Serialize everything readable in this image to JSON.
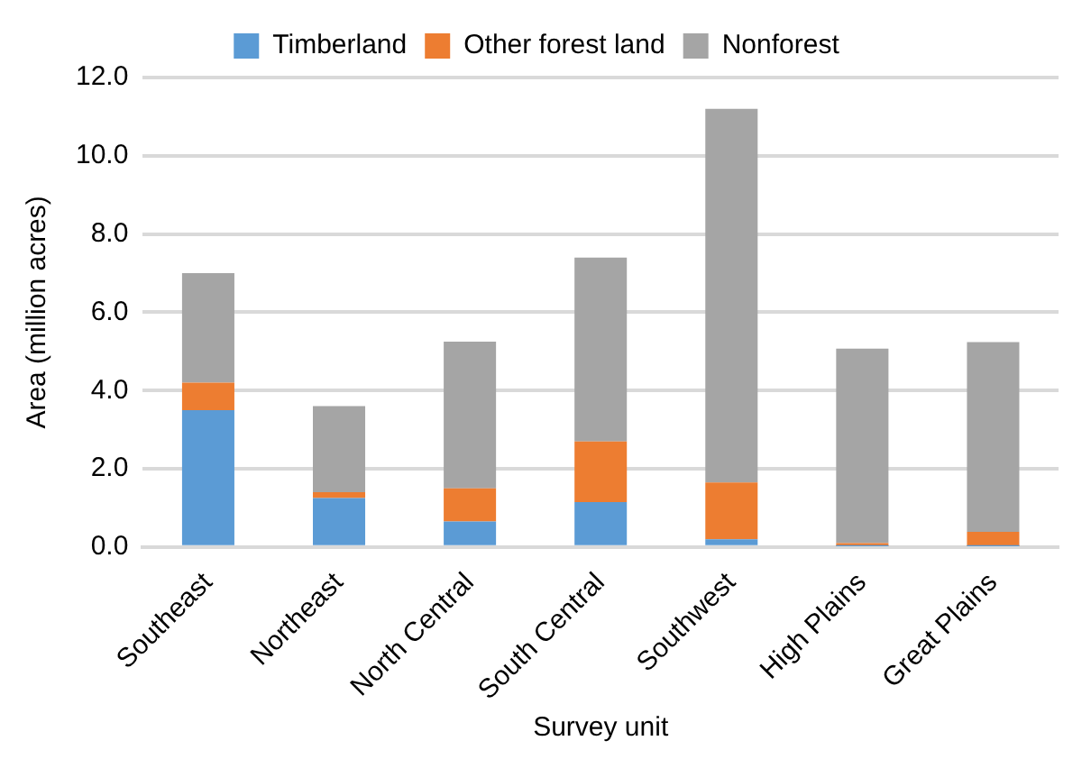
{
  "chart_data": {
    "type": "bar",
    "stacked": true,
    "xlabel": "Survey unit",
    "ylabel": "Area (million acres)",
    "categories": [
      "Southeast",
      "Northeast",
      "North Central",
      "South Central",
      "Southwest",
      "High Plains",
      "Great Plains"
    ],
    "series": [
      {
        "name": "Timberland",
        "color": "#5b9bd5",
        "values": [
          3.5,
          1.25,
          0.65,
          1.15,
          0.2,
          0.02,
          0.02
        ]
      },
      {
        "name": "Other forest land",
        "color": "#ed7d31",
        "values": [
          0.7,
          0.15,
          0.85,
          1.55,
          1.45,
          0.08,
          0.37
        ]
      },
      {
        "name": "Nonforest",
        "color": "#a5a5a5",
        "values": [
          2.8,
          2.2,
          3.75,
          4.7,
          9.55,
          4.97,
          4.85
        ]
      }
    ],
    "ylim": [
      0,
      12
    ],
    "yticks": [
      {
        "value": 0,
        "label": "0.0"
      },
      {
        "value": 2,
        "label": "2.0"
      },
      {
        "value": 4,
        "label": "4.0"
      },
      {
        "value": 6,
        "label": "6.0"
      },
      {
        "value": 8,
        "label": "8.0"
      },
      {
        "value": 10,
        "label": "10.0"
      },
      {
        "value": 12,
        "label": "12.0"
      }
    ],
    "grid": "y",
    "legend": "top"
  }
}
